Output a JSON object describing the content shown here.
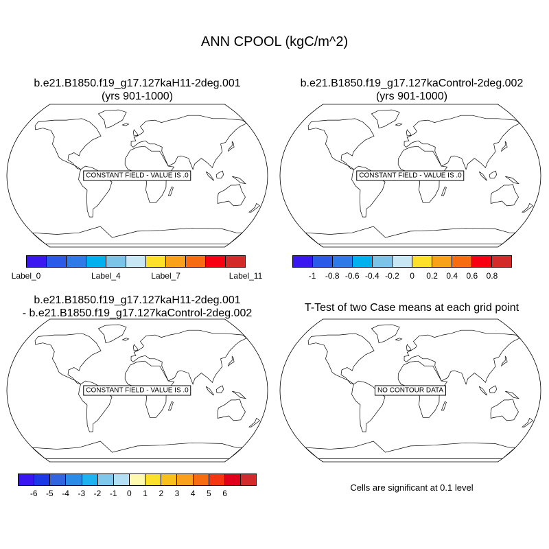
{
  "title": "ANN CPOOL (kgC/m^2)",
  "panels": [
    {
      "title_line1": "b.e21.B1850.f19_g17.127kaH11-2deg.001",
      "title_line2": "(yrs 901-1000)",
      "message": "CONSTANT FIELD - VALUE IS .0"
    },
    {
      "title_line1": "b.e21.B1850.f19_g17.127kaControl-2deg.002",
      "title_line2": "(yrs 901-1000)",
      "message": "CONSTANT FIELD - VALUE IS .0"
    },
    {
      "title_line1": "b.e21.B1850.f19_g17.127kaH11-2deg.001",
      "title_line2": "- b.e21.B1850.f19_g17.127kaControl-2deg.002",
      "message": "CONSTANT FIELD - VALUE IS .0"
    },
    {
      "title_line1": "T-Test of two Case means at each grid point",
      "title_line2": "",
      "message": "NO CONTOUR DATA"
    }
  ],
  "colorbars": [
    {
      "colors": [
        "#3a17f0",
        "#2c5ae8",
        "#2e7ae8",
        "#00b0ef",
        "#7cc3e8",
        "#c9e6f5",
        "#fde128",
        "#f9a11b",
        "#f76b11",
        "#f70011",
        "#d32b2b"
      ],
      "labels": [
        {
          "text": "Label_0",
          "pos": 0
        },
        {
          "text": "Label_4",
          "pos": 4
        },
        {
          "text": "Label_7",
          "pos": 7
        },
        {
          "text": "Label_11",
          "pos": 11
        }
      ]
    },
    {
      "colors": [
        "#3a17f0",
        "#2c5ae8",
        "#2e7ae8",
        "#00b0ef",
        "#7cc3e8",
        "#c9e6f5",
        "#fde128",
        "#f9a11b",
        "#f76b11",
        "#f70011",
        "#d32b2b"
      ],
      "labels": [
        {
          "text": "-1",
          "pos": 1
        },
        {
          "text": "-0.8",
          "pos": 2
        },
        {
          "text": "-0.6",
          "pos": 3
        },
        {
          "text": "-0.4",
          "pos": 4
        },
        {
          "text": "-0.2",
          "pos": 5
        },
        {
          "text": "0",
          "pos": 6
        },
        {
          "text": "0.2",
          "pos": 7
        },
        {
          "text": "0.4",
          "pos": 8
        },
        {
          "text": "0.6",
          "pos": 9
        },
        {
          "text": "0.8",
          "pos": 10
        }
      ]
    },
    {
      "colors": [
        "#3a17f0",
        "#1a3ae6",
        "#3264e0",
        "#2a8ce6",
        "#1eb3f0",
        "#7fc8ec",
        "#b3dff5",
        "#fefbb0",
        "#fde128",
        "#f9bf1d",
        "#f9a11b",
        "#f76b11",
        "#f73411",
        "#e0001a",
        "#d32b2b"
      ],
      "labels": [
        {
          "text": "-6",
          "pos": 1
        },
        {
          "text": "-5",
          "pos": 2
        },
        {
          "text": "-4",
          "pos": 3
        },
        {
          "text": "-3",
          "pos": 4
        },
        {
          "text": "-2",
          "pos": 5
        },
        {
          "text": "-1",
          "pos": 6
        },
        {
          "text": "0",
          "pos": 7
        },
        {
          "text": "1",
          "pos": 8
        },
        {
          "text": "2",
          "pos": 9
        },
        {
          "text": "3",
          "pos": 10
        },
        {
          "text": "4",
          "pos": 11
        },
        {
          "text": "5",
          "pos": 12
        },
        {
          "text": "6",
          "pos": 13
        }
      ]
    }
  ],
  "significance_note": "Cells are significant at 0.1 level"
}
